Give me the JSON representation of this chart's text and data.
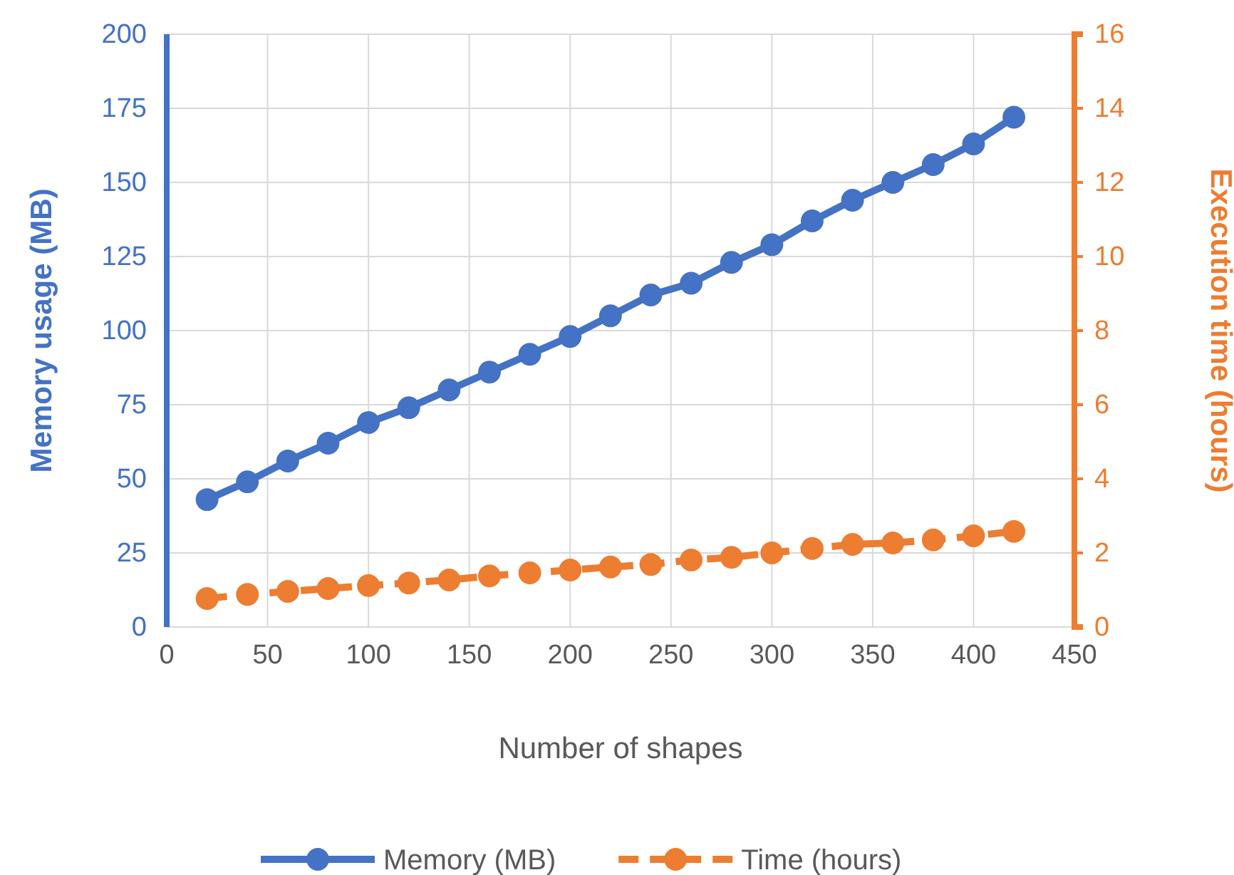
{
  "chart_data": {
    "type": "line",
    "xlabel": "Number of shapes",
    "ylabel": "Memory usage (MB)",
    "y2label": "Execution time (hours)",
    "x": [
      20,
      40,
      60,
      80,
      100,
      120,
      140,
      160,
      180,
      200,
      220,
      240,
      260,
      280,
      300,
      320,
      340,
      360,
      380,
      400,
      420
    ],
    "xlim": [
      0,
      450
    ],
    "xticks": [
      0,
      50,
      100,
      150,
      200,
      250,
      300,
      350,
      400,
      450
    ],
    "ylim": [
      0,
      200
    ],
    "yticks": [
      0,
      25,
      50,
      75,
      100,
      125,
      150,
      175,
      200
    ],
    "y2lim": [
      0,
      16
    ],
    "y2ticks": [
      0,
      2,
      4,
      6,
      8,
      10,
      12,
      14,
      16
    ],
    "grid": true,
    "legend": "bottom",
    "marker": "circle",
    "series": [
      {
        "name": "Memory (MB)",
        "color": "#4472c4",
        "line_style": "solid",
        "values": [
          43,
          49,
          56,
          62,
          69,
          74,
          80,
          86,
          92,
          98,
          105,
          112,
          116,
          123,
          129,
          137,
          144,
          150,
          156,
          163,
          172
        ]
      },
      {
        "name": "Time (hours)",
        "color": "#ed7d31",
        "line_style": "dashed",
        "axis": "y2",
        "values": [
          0.77,
          0.88,
          0.96,
          1.04,
          1.12,
          1.19,
          1.27,
          1.38,
          1.46,
          1.54,
          1.62,
          1.69,
          1.81,
          1.88,
          2.0,
          2.12,
          2.23,
          2.27,
          2.35,
          2.46,
          2.58
        ]
      }
    ]
  }
}
